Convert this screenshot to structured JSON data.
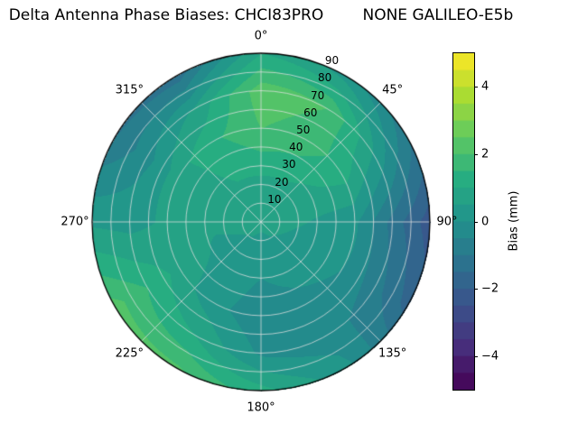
{
  "title": "Delta Antenna Phase Biases: CHCI83PRO        NONE GALILEO-E5b",
  "chart_data": {
    "type": "heatmap",
    "projection": "polar",
    "title": "Delta Antenna Phase Biases: CHCI83PRO        NONE GALILEO-E5b",
    "angular_ticks": {
      "angles_deg": [
        0,
        45,
        90,
        135,
        180,
        225,
        270,
        315
      ],
      "labels": [
        "0°",
        "45°",
        "90°",
        "135°",
        "180°",
        "225°",
        "270°",
        "315°"
      ],
      "direction": "clockwise",
      "zero_location": "top"
    },
    "radial_ticks": {
      "values": [
        10,
        20,
        30,
        40,
        50,
        60,
        70,
        80,
        90
      ],
      "labels": [
        "10",
        "20",
        "30",
        "40",
        "50",
        "60",
        "70",
        "80",
        "90"
      ],
      "label_angle_deg": 22.5,
      "max": 90
    },
    "colorbar": {
      "label": "Bias (mm)",
      "min": -5,
      "max": 5,
      "tick_values": [
        4,
        2,
        0,
        -2,
        -4
      ],
      "tick_labels": [
        "4",
        "2",
        "0",
        "−2",
        "−4"
      ],
      "level_step": 0.5
    },
    "colormap": {
      "name": "viridis",
      "stops": [
        "#440154",
        "#472d7b",
        "#3b528b",
        "#2c728e",
        "#21918c",
        "#27ad81",
        "#5ec962",
        "#aadc32",
        "#fde725"
      ]
    },
    "grid_azimuth_deg": [
      0,
      30,
      60,
      90,
      120,
      150,
      180,
      210,
      240,
      270,
      300,
      330,
      360
    ],
    "grid_radius": [
      0,
      25,
      50,
      70,
      90
    ],
    "bias_mm": [
      [
        0.6,
        1.0,
        2.0,
        2.3,
        1.0
      ],
      [
        0.6,
        1.0,
        1.8,
        2.0,
        0.3
      ],
      [
        0.6,
        0.8,
        1.2,
        0.4,
        -0.9
      ],
      [
        0.6,
        0.5,
        0.1,
        -1.2,
        -2.3
      ],
      [
        0.6,
        0.4,
        0.0,
        -0.8,
        -1.7
      ],
      [
        0.6,
        0.3,
        -0.2,
        -0.3,
        0.2
      ],
      [
        0.6,
        0.1,
        -0.4,
        -0.1,
        1.2
      ],
      [
        0.6,
        0.3,
        0.2,
        1.0,
        2.1
      ],
      [
        0.6,
        0.4,
        0.8,
        1.5,
        2.2
      ],
      [
        0.6,
        0.6,
        0.6,
        0.3,
        0.4
      ],
      [
        0.6,
        0.8,
        0.8,
        -0.2,
        -1.0
      ],
      [
        0.6,
        1.0,
        1.4,
        0.6,
        -1.3
      ],
      [
        0.6,
        1.0,
        2.0,
        2.3,
        1.0
      ]
    ]
  }
}
